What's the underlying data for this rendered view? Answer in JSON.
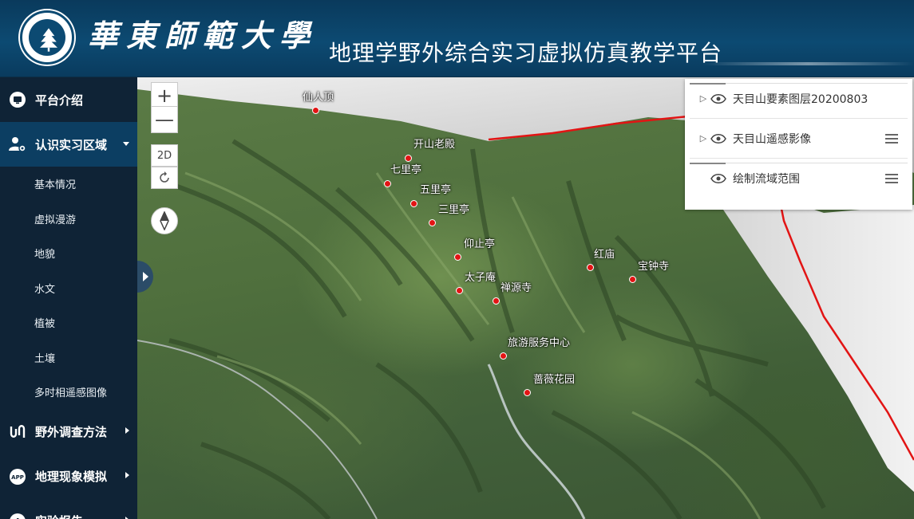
{
  "header": {
    "university_name": "華東師範大學",
    "platform_title": "地理学野外综合实习虚拟仿真教学平台"
  },
  "sidebar": {
    "items": [
      {
        "label": "平台介绍",
        "icon": "monitor-icon",
        "expanded": false
      },
      {
        "label": "认识实习区域",
        "icon": "user-gear-icon",
        "expanded": true,
        "children": [
          "基本情况",
          "虚拟漫游",
          "地貌",
          "水文",
          "植被",
          "土壤",
          "多时相遥感图像"
        ]
      },
      {
        "label": "野外调查方法",
        "icon": "tools-icon",
        "expanded": false
      },
      {
        "label": "地理现象模拟",
        "icon": "app-icon",
        "expanded": false
      },
      {
        "label": "实验报告",
        "icon": "bar-chart-icon",
        "expanded": false
      }
    ]
  },
  "map_controls": {
    "zoom_in": "+",
    "zoom_out": "—",
    "view_mode": "2D"
  },
  "pois": [
    "仙人顶",
    "开山老殿",
    "七里亭",
    "五里亭",
    "三里亭",
    "仰止亭",
    "太子庵",
    "禅源寺",
    "红庙",
    "宝钟寺",
    "旅游服务中心",
    "蔷薇花园"
  ],
  "layers": [
    {
      "name": "天目山要素图层20200803",
      "expandable": true,
      "menu": false
    },
    {
      "name": "天目山遥感影像",
      "expandable": true,
      "menu": true
    },
    {
      "name": "绘制流域范围",
      "expandable": false,
      "menu": true
    }
  ],
  "colors": {
    "header_bg": "#0c4a72",
    "sidebar_bg": "#0f2336",
    "sidebar_active": "#0c3e62",
    "poi_marker": "#e21414",
    "boundary": "#e21414"
  }
}
